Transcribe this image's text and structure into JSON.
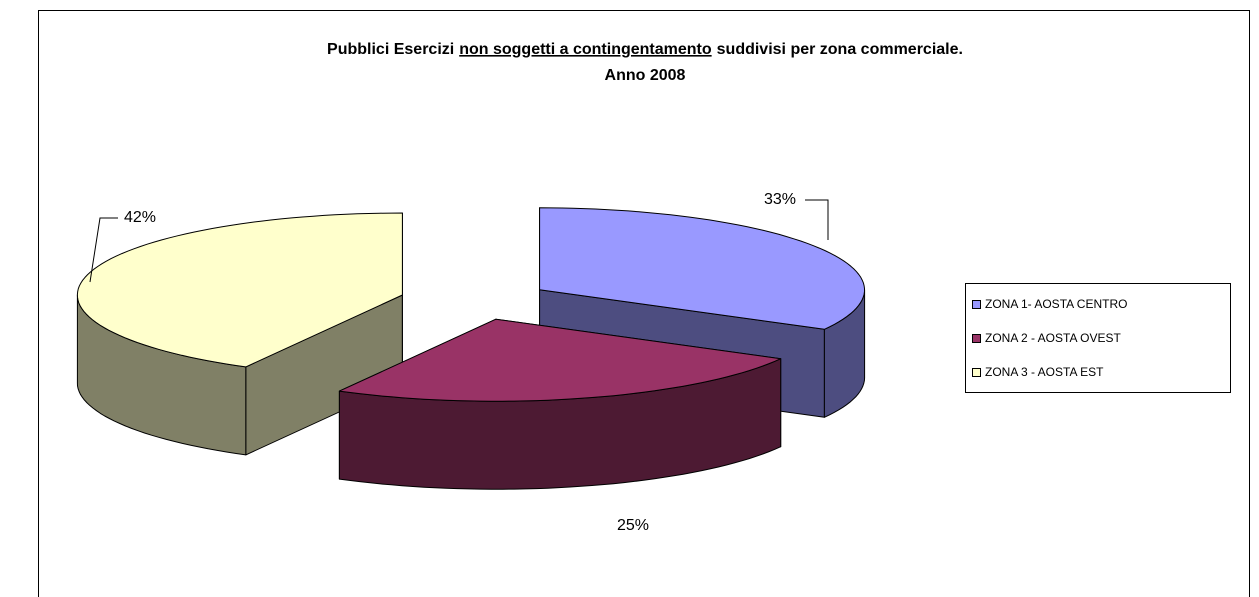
{
  "chart_data": {
    "type": "pie3d",
    "title": [
      "Pubblici Esercizi",
      "non soggetti a contingentamento",
      "suddivisi per zona commerciale."
    ],
    "subtitle": "Anno 2008",
    "categories": [
      "ZONA 1- AOSTA CENTRO",
      "ZONA 2 - AOSTA OVEST",
      "ZONA 3 - AOSTA EST"
    ],
    "values": [
      33,
      25,
      42
    ],
    "value_labels": [
      "33%",
      "25%",
      "42%"
    ],
    "colors": [
      "#9999ff",
      "#993366",
      "#ffffcc"
    ],
    "legend": "right"
  }
}
